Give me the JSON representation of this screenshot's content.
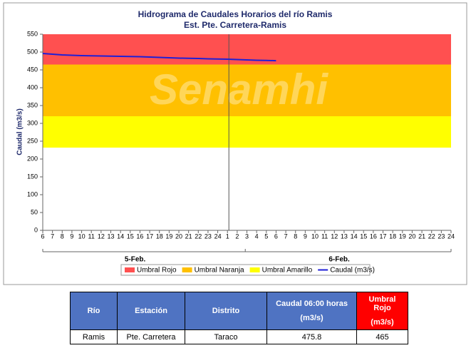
{
  "chart_data": {
    "type": "line",
    "title": "Hidrograma de Caudales Horarios del río Ramis",
    "subtitle": "Est. Pte. Carretera-Ramis",
    "watermark": "Senamhi",
    "y_label": "Caudal  (m3/s)",
    "categories": [
      "6",
      "7",
      "8",
      "9",
      "10",
      "11",
      "12",
      "13",
      "14",
      "15",
      "16",
      "17",
      "18",
      "19",
      "20",
      "21",
      "22",
      "23",
      "24",
      "1",
      "2",
      "3",
      "4",
      "5",
      "6",
      "7",
      "8",
      "9",
      "10",
      "11",
      "12",
      "13",
      "14",
      "15",
      "16",
      "17",
      "18",
      "19",
      "20",
      "21",
      "22",
      "23",
      "24"
    ],
    "days": [
      "5-Feb.",
      "6-Feb."
    ],
    "ylim": [
      0,
      550
    ],
    "yticks": [
      0,
      50,
      100,
      150,
      200,
      250,
      300,
      350,
      400,
      450,
      500,
      550
    ],
    "thresholds": [
      {
        "name": "Umbral Rojo",
        "color": "#ff5050",
        "value": 465
      },
      {
        "name": "Umbral Naranja",
        "color": "#ffc000",
        "value": 320
      },
      {
        "name": "Umbral Amarillo",
        "color": "#ffff00",
        "value": 232
      }
    ],
    "series": [
      {
        "name": "Caudal (m3/s)",
        "color": "#1f1fd6",
        "values": [
          496,
          494,
          492,
          491,
          490,
          489.5,
          489,
          488.5,
          488,
          487.5,
          487,
          486,
          485,
          484,
          483,
          482.5,
          482,
          481,
          480.5,
          480,
          479,
          478,
          477,
          476.5,
          475.8,
          null,
          null,
          null,
          null,
          null,
          null,
          null,
          null,
          null,
          null,
          null,
          null,
          null,
          null,
          null,
          null,
          null,
          null
        ]
      }
    ]
  },
  "table": {
    "header": [
      [
        "Río"
      ],
      [
        "Estación"
      ],
      [
        "Distrito"
      ],
      [
        "Caudal 06:00 horas",
        "(m3/s)"
      ],
      [
        "Umbral Rojo",
        "(m3/s)"
      ]
    ],
    "rows": [
      [
        "Ramis",
        "Pte. Carretera",
        "Taraco",
        475.8,
        465
      ]
    ]
  }
}
